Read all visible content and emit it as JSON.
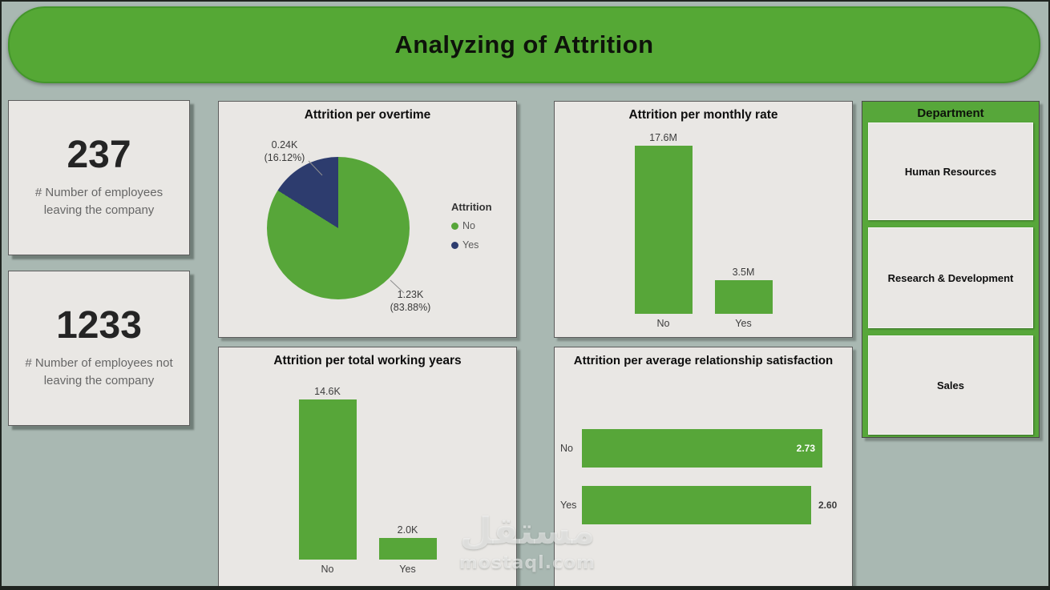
{
  "header": {
    "title": "Analyzing of Attrition"
  },
  "kpis": [
    {
      "value": "237",
      "label": "# Number of employees leaving the company"
    },
    {
      "value": "1233",
      "label": "# Number of employees not leaving the company"
    }
  ],
  "department": {
    "title": "Department",
    "items": [
      {
        "label": "Human Resources"
      },
      {
        "label": "Research & Development"
      },
      {
        "label": "Sales"
      }
    ]
  },
  "watermark": {
    "arabic": "مستقل",
    "latin": "mostaql.com"
  },
  "colors": {
    "green": "#57a639",
    "navy": "#2d3c6e",
    "header_green": "#55a835",
    "panel_green": "#57a73a",
    "card_bg": "#e9e7e4",
    "page_bg": "#a9b8b2"
  },
  "chart_data": [
    {
      "type": "pie",
      "title": "Attrition per overtime",
      "legend_title": "Attrition",
      "legend_position": "right",
      "slices": [
        {
          "label": "No",
          "value_display": "1.23K",
          "pct": 83.88,
          "pct_display": "(83.88%)",
          "color": "#57a639"
        },
        {
          "label": "Yes",
          "value_display": "0.24K",
          "pct": 16.12,
          "pct_display": "(16.12%)",
          "color": "#2d3c6e"
        }
      ]
    },
    {
      "type": "bar",
      "title": "Attrition per monthly rate",
      "categories": [
        "No",
        "Yes"
      ],
      "values": [
        17.6,
        3.5
      ],
      "value_labels": [
        "17.6M",
        "3.5M"
      ],
      "ylim": [
        0,
        17.6
      ],
      "grid": false
    },
    {
      "type": "bar",
      "title": "Attrition per total working years",
      "categories": [
        "No",
        "Yes"
      ],
      "values": [
        14.6,
        2.0
      ],
      "value_labels": [
        "14.6K",
        "2.0K"
      ],
      "ylim": [
        0,
        14.6
      ],
      "grid": false
    },
    {
      "type": "bar-horizontal",
      "title": "Attrition per average relationship satisfaction",
      "categories": [
        "No",
        "Yes"
      ],
      "values": [
        2.73,
        2.6
      ],
      "value_labels": [
        "2.73",
        "2.60"
      ],
      "label_positions": [
        "inside",
        "outside"
      ],
      "xlim": [
        0,
        2.73
      ],
      "grid": false
    }
  ]
}
